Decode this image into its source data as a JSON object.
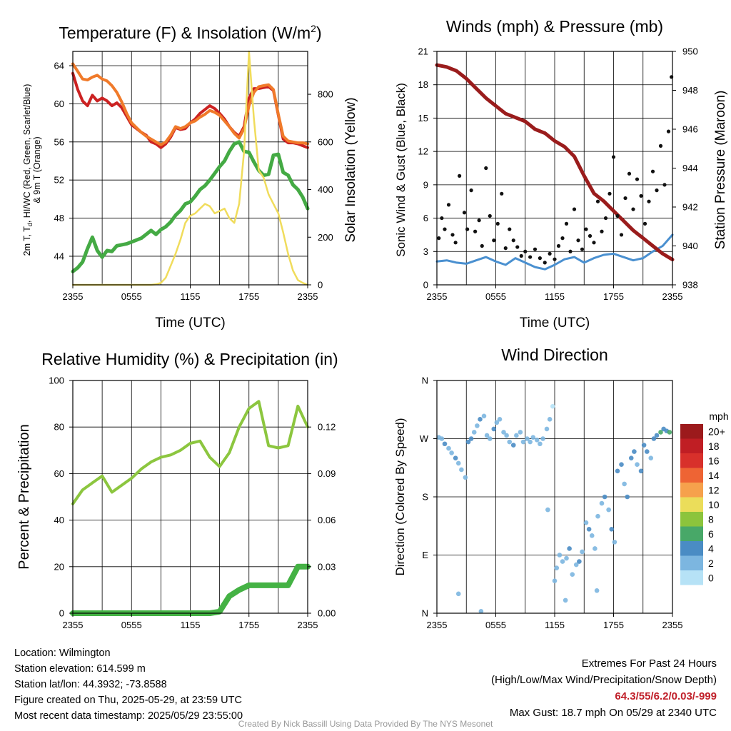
{
  "chart_data": [
    {
      "type": "line",
      "title": "Temperature (F) & Insolation (W/m²)",
      "xlabel": "Time (UTC)",
      "ylabel_left": "2m T, Td, HI/WC (Red, Green, Scarlet/Blue) & 9m T (Orange)",
      "ylabel_right": "Solar Insolation (Yellow)",
      "x_ticks": [
        "2355",
        "0555",
        "1155",
        "1755",
        "2355"
      ],
      "ylim": [
        41,
        65.5
      ],
      "y_ticks": [
        44,
        48,
        52,
        56,
        60,
        64
      ],
      "y2lim": [
        0,
        980
      ],
      "y2_ticks": [
        0,
        200,
        400,
        600,
        800
      ],
      "grid": true,
      "x_hours": [
        0,
        0.5,
        1,
        1.5,
        2,
        2.5,
        3,
        3.5,
        4,
        4.5,
        5,
        5.5,
        6,
        6.5,
        7,
        7.5,
        8,
        8.5,
        9,
        9.5,
        10,
        10.5,
        11,
        11.5,
        12,
        12.5,
        13,
        13.5,
        14,
        14.5,
        15,
        15.5,
        16,
        16.5,
        17,
        17.5,
        18,
        18.5,
        19,
        19.5,
        20,
        20.5,
        21,
        21.5,
        22,
        22.5,
        23,
        23.5,
        24
      ],
      "series": [
        {
          "name": "2m T",
          "axis": "left",
          "color": "#cc2222",
          "width": 4,
          "values": [
            63.2,
            61.5,
            60.3,
            59.8,
            60.9,
            60.3,
            60.6,
            60.3,
            59.8,
            60.1,
            59.6,
            58.7,
            57.8,
            57.4,
            57.0,
            56.7,
            56.0,
            55.8,
            55.4,
            55.8,
            56.5,
            57.5,
            57.3,
            57.4,
            58.0,
            58.4,
            59.0,
            59.4,
            59.8,
            59.5,
            59.0,
            58.4,
            57.6,
            57.0,
            56.6,
            57.6,
            60.6,
            61.6,
            61.6,
            61.7,
            61.8,
            61.4,
            58.8,
            56.3,
            55.9,
            55.9,
            55.8,
            55.6,
            55.4
          ]
        },
        {
          "name": "9m T",
          "axis": "left",
          "color": "#f07a2a",
          "width": 4,
          "values": [
            64.2,
            63.4,
            62.6,
            62.5,
            62.8,
            63.0,
            62.6,
            62.4,
            61.9,
            61.2,
            60.2,
            59.0,
            58.0,
            57.5,
            57.0,
            56.6,
            56.3,
            56.0,
            55.7,
            56.0,
            56.7,
            57.6,
            57.4,
            57.6,
            58.0,
            58.2,
            58.6,
            58.9,
            59.3,
            59.1,
            58.8,
            58.2,
            57.6,
            56.9,
            56.4,
            57.4,
            59.8,
            61.2,
            61.8,
            61.9,
            62.0,
            61.5,
            58.9,
            56.6,
            56.1,
            56.0,
            55.9,
            55.9,
            55.8
          ]
        },
        {
          "name": "2m Td",
          "axis": "left",
          "color": "#44aa44",
          "width": 5,
          "values": [
            42.4,
            42.8,
            43.4,
            44.8,
            46.0,
            44.6,
            43.9,
            44.6,
            44.5,
            45.1,
            45.2,
            45.3,
            45.5,
            45.7,
            45.9,
            46.3,
            46.7,
            46.3,
            46.8,
            47.1,
            47.6,
            48.3,
            48.8,
            49.5,
            49.7,
            50.3,
            51.0,
            51.4,
            52.0,
            52.7,
            53.4,
            54.0,
            55.0,
            55.8,
            56.0,
            55.0,
            54.9,
            53.9,
            53.0,
            52.5,
            52.6,
            54.6,
            54.7,
            52.8,
            52.5,
            51.5,
            51.0,
            50.2,
            49.0
          ]
        },
        {
          "name": "Solar Insolation",
          "axis": "right",
          "color": "#f0dc5c",
          "width": 2.5,
          "values": [
            0,
            0,
            0,
            0,
            0,
            0,
            0,
            0,
            0,
            0,
            0,
            0,
            0,
            0,
            0,
            0,
            0,
            2,
            8,
            30,
            80,
            130,
            190,
            260,
            290,
            300,
            320,
            340,
            330,
            300,
            310,
            320,
            280,
            260,
            340,
            560,
            980,
            700,
            480,
            450,
            380,
            340,
            300,
            220,
            130,
            60,
            20,
            8,
            0
          ]
        }
      ]
    },
    {
      "type": "line",
      "title": "Winds (mph) & Pressure (mb)",
      "xlabel": "Time (UTC)",
      "ylabel_left": "Sonic Wind & Gust (Blue, Black)",
      "ylabel_right": "Station Pressure (Maroon)",
      "x_ticks": [
        "2355",
        "0555",
        "1155",
        "1755",
        "2355"
      ],
      "ylim": [
        0,
        21
      ],
      "y_ticks": [
        0,
        3,
        6,
        9,
        12,
        15,
        18,
        21
      ],
      "y2lim": [
        938,
        950
      ],
      "y2_ticks": [
        938,
        940,
        942,
        944,
        946,
        948,
        950
      ],
      "grid": true,
      "x_hours": [
        0,
        1,
        2,
        3,
        4,
        5,
        6,
        7,
        8,
        9,
        10,
        11,
        12,
        13,
        14,
        15,
        16,
        17,
        18,
        19,
        20,
        21,
        22,
        23,
        24
      ],
      "series": [
        {
          "name": "Sonic Wind",
          "axis": "left",
          "color": "#4a90d0",
          "width": 3,
          "values": [
            2.1,
            2.2,
            2.0,
            1.9,
            2.2,
            2.5,
            2.1,
            1.8,
            2.4,
            2.0,
            1.6,
            1.4,
            1.8,
            2.3,
            2.5,
            2.0,
            2.4,
            2.7,
            2.8,
            2.5,
            2.2,
            2.4,
            3.0,
            3.5,
            4.5
          ]
        },
        {
          "name": "Station Pressure",
          "axis": "right",
          "color": "#9a1c1c",
          "width": 5,
          "values": [
            949.3,
            949.2,
            949.0,
            948.6,
            948.1,
            947.6,
            947.2,
            946.8,
            946.6,
            946.4,
            946.0,
            945.8,
            945.4,
            945.1,
            944.6,
            943.6,
            942.7,
            942.3,
            941.8,
            941.3,
            940.8,
            940.4,
            940.0,
            939.6,
            939.3
          ]
        }
      ],
      "gust_points": {
        "name": "Gust",
        "color": "#111111",
        "x": [
          0.2,
          0.5,
          0.8,
          1.2,
          1.6,
          1.9,
          2.3,
          2.8,
          3.1,
          3.5,
          3.9,
          4.3,
          4.6,
          5.0,
          5.4,
          5.8,
          6.2,
          6.6,
          7.0,
          7.4,
          7.8,
          8.2,
          8.6,
          9.0,
          9.5,
          10.0,
          10.5,
          11.0,
          11.5,
          12.0,
          12.4,
          12.8,
          13.2,
          13.6,
          14.0,
          14.4,
          14.8,
          15.2,
          15.6,
          16.0,
          16.4,
          16.8,
          17.2,
          17.6,
          18.0,
          18.4,
          18.8,
          19.2,
          19.6,
          20.0,
          20.4,
          20.8,
          21.2,
          21.6,
          22.0,
          22.4,
          22.8,
          23.2,
          23.6,
          23.9
        ],
        "y": [
          4.2,
          6.0,
          5.0,
          7.2,
          4.5,
          3.8,
          9.8,
          6.5,
          5.0,
          8.5,
          4.8,
          5.8,
          3.5,
          10.5,
          6.2,
          4.0,
          5.5,
          8.2,
          3.3,
          5.0,
          4.0,
          3.4,
          2.6,
          3.0,
          2.5,
          3.2,
          2.4,
          2.0,
          2.8,
          2.3,
          3.5,
          4.2,
          5.5,
          3.0,
          6.8,
          4.0,
          3.2,
          5.0,
          4.4,
          3.8,
          7.5,
          4.8,
          6.0,
          8.2,
          11.5,
          6.2,
          4.5,
          7.8,
          10.0,
          6.8,
          9.5,
          8.0,
          5.5,
          7.5,
          10.2,
          8.5,
          12.5,
          9.0,
          13.8,
          18.7
        ]
      }
    },
    {
      "type": "line",
      "title": "Relative Humidity (%) & Precipitation (in)",
      "xlabel": "",
      "ylabel_left": "Percent & Precipitation",
      "x_ticks": [
        "2355",
        "0555",
        "1155",
        "1755",
        "2355"
      ],
      "ylim": [
        0,
        100
      ],
      "y_ticks": [
        0,
        20,
        40,
        60,
        80,
        100
      ],
      "y2lim": [
        0,
        0.15
      ],
      "y2_ticks": [
        "0.00",
        "0.03",
        "0.06",
        "0.09",
        "0.12"
      ],
      "grid": true,
      "x_hours": [
        0,
        1,
        2,
        3,
        4,
        5,
        6,
        7,
        8,
        9,
        10,
        11,
        12,
        13,
        14,
        15,
        16,
        17,
        18,
        19,
        20,
        21,
        22,
        23,
        24
      ],
      "series": [
        {
          "name": "Relative Humidity",
          "axis": "left",
          "color": "#8cc63f",
          "width": 4,
          "values": [
            47,
            53,
            56,
            59,
            52,
            55,
            58,
            62,
            65,
            67,
            68,
            70,
            73,
            74,
            67,
            63,
            69,
            80,
            88,
            91,
            72,
            71,
            72,
            89,
            80
          ]
        },
        {
          "name": "Precipitation",
          "axis": "right",
          "color": "#44b244",
          "width": 8,
          "values": [
            0,
            0,
            0,
            0,
            0,
            0,
            0,
            0,
            0,
            0,
            0,
            0,
            0,
            0,
            0,
            0.001,
            0.011,
            0.015,
            0.018,
            0.018,
            0.018,
            0.018,
            0.018,
            0.03,
            0.03
          ]
        }
      ]
    },
    {
      "type": "scatter",
      "title": "Wind Direction",
      "xlabel": "",
      "ylabel_left": "Direction (Colored By Speed)",
      "x_ticks": [
        "2355",
        "0555",
        "1155",
        "1755",
        "2355"
      ],
      "ylim": [
        0,
        360
      ],
      "y_ticks": [
        "N",
        "E",
        "S",
        "W",
        "N"
      ],
      "grid": true,
      "legend": {
        "title": "mph",
        "placement": "right",
        "labels": [
          "20+",
          "18",
          "16",
          "14",
          "12",
          "10",
          "8",
          "6",
          "4",
          "2",
          "0"
        ],
        "colors": [
          "#9c1a1c",
          "#c01e24",
          "#d8302b",
          "#ee6434",
          "#f6a14c",
          "#ebdd5a",
          "#8cc43c",
          "#48a868",
          "#4a8cc4",
          "#7cb6e0",
          "#b6e2f6"
        ]
      },
      "points": {
        "x": [
          0.2,
          0.5,
          0.8,
          1.2,
          1.5,
          1.9,
          2.2,
          2.5,
          2.9,
          3.2,
          3.5,
          3.8,
          4.1,
          4.4,
          4.8,
          5.1,
          5.4,
          5.8,
          6.1,
          6.4,
          6.8,
          7.1,
          7.4,
          7.8,
          8.1,
          8.5,
          8.8,
          9.2,
          9.5,
          9.8,
          10.2,
          10.5,
          10.8,
          11.2,
          11.5,
          11.8,
          12.2,
          12.5,
          12.8,
          13.2,
          13.5,
          13.8,
          14.2,
          14.5,
          14.8,
          15.2,
          15.5,
          15.8,
          16.1,
          16.4,
          16.8,
          17.1,
          17.5,
          17.8,
          18.1,
          18.4,
          18.8,
          19.1,
          19.4,
          19.8,
          20.1,
          20.4,
          20.8,
          21.1,
          21.4,
          21.8,
          22.1,
          22.4,
          22.8,
          23.1,
          23.4,
          23.7,
          4.5,
          2.2,
          11.3,
          12.0,
          13.1,
          16.3
        ],
        "y": [
          272,
          270,
          262,
          255,
          248,
          240,
          232,
          222,
          210,
          265,
          270,
          280,
          290,
          300,
          305,
          275,
          270,
          285,
          295,
          300,
          280,
          275,
          265,
          260,
          275,
          280,
          265,
          270,
          265,
          272,
          268,
          262,
          270,
          285,
          300,
          320,
          70,
          90,
          80,
          85,
          100,
          60,
          75,
          80,
          95,
          140,
          130,
          120,
          100,
          150,
          170,
          180,
          160,
          130,
          110,
          220,
          230,
          200,
          180,
          240,
          250,
          230,
          220,
          260,
          250,
          240,
          270,
          275,
          280,
          285,
          282,
          280,
          3,
          30,
          160,
          50,
          20,
          35
        ],
        "speeds": [
          2,
          2,
          3,
          2,
          2,
          3,
          2,
          2,
          2,
          3,
          3,
          2,
          2,
          3,
          2,
          1,
          2,
          3,
          2,
          1,
          2,
          1,
          2,
          3,
          1,
          2,
          2,
          1,
          2,
          1,
          1,
          2,
          1,
          1,
          1,
          0,
          1,
          2,
          1,
          1,
          3,
          2,
          2,
          3,
          2,
          1,
          3,
          2,
          2,
          1,
          2,
          3,
          2,
          3,
          2,
          3,
          4,
          2,
          3,
          4,
          3,
          2,
          3,
          4,
          3,
          2,
          4,
          4,
          6,
          4,
          4,
          5,
          2,
          1,
          1,
          1,
          1,
          2
        ]
      }
    }
  ],
  "station_info": {
    "location": "Location: Wilmington",
    "elevation": "Station elevation: 614.599 m",
    "latlon": "Station lat/lon: 44.3932; -73.8588",
    "created": "Figure created on Thu, 2025-05-29, at 23:59 UTC",
    "recent": "Most recent data timestamp: 2025/05/29 23:55:00"
  },
  "extremes": {
    "title": "Extremes For Past 24 Hours",
    "subtitle": "(High/Low/Max Wind/Precipitation/Snow Depth)",
    "values": "64.3/55/6.2/0.03/-999",
    "max_gust": "Max Gust: 18.7 mph On 05/29 at 2340 UTC",
    "accent_color": "#c0202a"
  },
  "footer": {
    "credit": "Created By Nick Bassill Using Data Provided By The NYS Mesonet"
  }
}
